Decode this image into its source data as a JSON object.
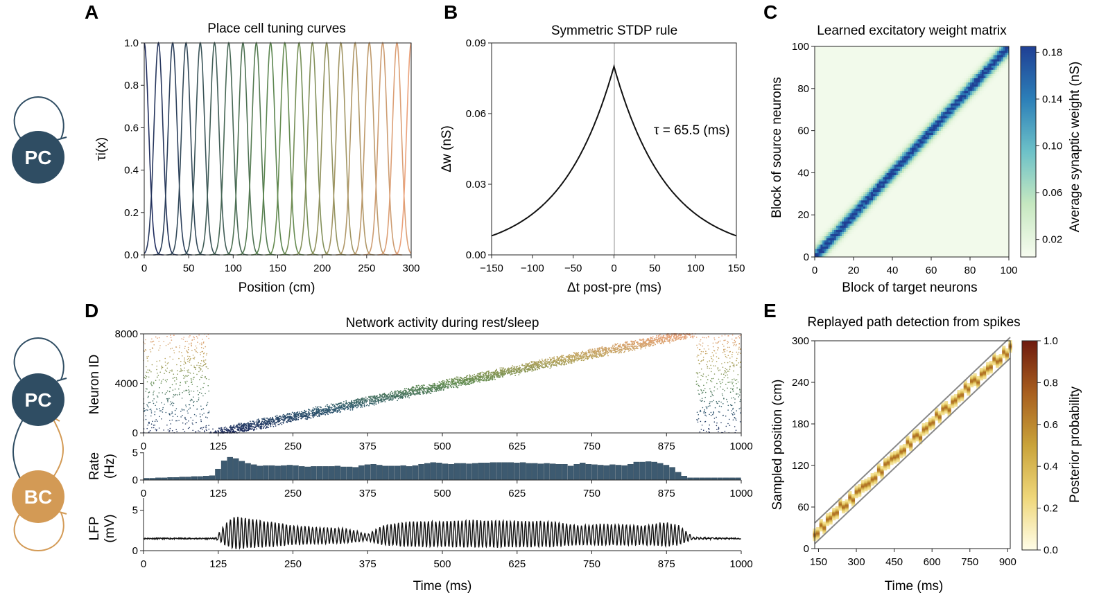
{
  "schematic": {
    "top_label": "PC",
    "bottom_pc_label": "PC",
    "bottom_bc_label": "BC",
    "pc_color": "#2f4d63",
    "bc_color": "#d39a55"
  },
  "chart_data": [
    {
      "panel": "A",
      "type": "line",
      "title": "Place cell tuning curves",
      "xlabel": "Position (cm)",
      "ylabel": "τi(x)",
      "xlim": [
        0,
        300
      ],
      "ylim": [
        0,
        1
      ],
      "xticks": [
        "0",
        "50",
        "100",
        "150",
        "200",
        "250",
        "300"
      ],
      "yticks": [
        "0.0",
        "0.2",
        "0.4",
        "0.6",
        "0.8",
        "1.0"
      ],
      "curve_centers": [
        0,
        16,
        32,
        47,
        63,
        79,
        95,
        111,
        126,
        142,
        158,
        174,
        189,
        205,
        221,
        237,
        253,
        268,
        284,
        300
      ],
      "curve_sigma_cm": 5,
      "color_start": "#1e2b5e",
      "color_mid": "#5e8a4e",
      "color_end": "#eba17a"
    },
    {
      "panel": "B",
      "type": "line",
      "title": "Symmetric STDP rule",
      "xlabel": "Δt post-pre (ms)",
      "ylabel": "Δw (nS)",
      "xlim": [
        -150,
        150
      ],
      "ylim": [
        0,
        0.09
      ],
      "xticks": [
        "−150",
        "−100",
        "−50",
        "0",
        "50",
        "100",
        "150"
      ],
      "yticks": [
        "0.00",
        "0.03",
        "0.06",
        "0.09"
      ],
      "peak": 0.08,
      "tau_ms": 65.5,
      "annotation": "τ = 65.5 (ms)"
    },
    {
      "panel": "C",
      "type": "heatmap",
      "title": "Learned excitatory weight matrix",
      "xlabel": "Block of target neurons",
      "ylabel": "Block of source neurons",
      "colorbar_label": "Average synaptic weight (nS)",
      "xlim": [
        0,
        100
      ],
      "ylim": [
        0,
        100
      ],
      "xticks": [
        "0",
        "20",
        "40",
        "60",
        "80",
        "100"
      ],
      "yticks": [
        "0",
        "20",
        "40",
        "60",
        "80",
        "100"
      ],
      "colorbar_ticks": [
        "0.02",
        "0.06",
        "0.10",
        "0.14",
        "0.18"
      ],
      "colorbar_range": [
        0.005,
        0.185
      ],
      "diagonal_peak": 0.17,
      "background": 0.01
    },
    {
      "panel": "D",
      "type": "scatter",
      "title": "Network activity during rest/sleep",
      "raster": {
        "ylabel": "Neuron ID",
        "xlim": [
          0,
          1000
        ],
        "ylim": [
          0,
          8000
        ],
        "yticks": [
          "0",
          "4000",
          "8000"
        ],
        "xticks": [
          "0",
          "125",
          "250",
          "375",
          "500",
          "625",
          "750",
          "875",
          "1000"
        ],
        "replay_start": [
          125,
          0
        ],
        "replay_end": [
          910,
          8000
        ]
      },
      "rate": {
        "ylabel": "Rate (Hz)",
        "ylim": [
          0,
          6
        ],
        "yticks": [
          "0",
          "5"
        ],
        "xticks": [
          "0",
          "125",
          "250",
          "375",
          "500",
          "625",
          "750",
          "875",
          "1000"
        ],
        "bin_ms": 10,
        "values": [
          0.4,
          0.4,
          0.5,
          0.5,
          0.6,
          0.6,
          0.7,
          0.7,
          0.8,
          0.8,
          0.9,
          1.0,
          2.5,
          4.4,
          5.2,
          4.9,
          4.3,
          3.8,
          3.5,
          3.2,
          3.3,
          3.3,
          3.2,
          3.3,
          3.4,
          3.3,
          3.1,
          3.0,
          3.1,
          3.1,
          3.1,
          3.1,
          3.2,
          3.0,
          3.0,
          2.9,
          3.3,
          3.5,
          3.6,
          3.4,
          3.2,
          3.2,
          3.2,
          3.3,
          3.1,
          3.3,
          3.6,
          3.8,
          4.0,
          3.9,
          3.7,
          3.6,
          3.8,
          3.8,
          3.7,
          3.8,
          3.9,
          3.9,
          4.0,
          4.0,
          4.0,
          4.0,
          3.9,
          4.0,
          3.8,
          3.8,
          3.7,
          3.8,
          3.7,
          3.6,
          3.6,
          3.2,
          3.6,
          3.9,
          3.6,
          3.5,
          3.4,
          3.3,
          3.5,
          3.4,
          3.3,
          3.6,
          4.1,
          4.1,
          4.2,
          4.1,
          3.8,
          3.4,
          2.9,
          1.8,
          0.9,
          0.5,
          0.5,
          0.5,
          0.5,
          0.5,
          0.5,
          0.5,
          0.5,
          0.5
        ]
      },
      "lfp": {
        "ylabel": "LFP (mV)",
        "xlabel": "Time (ms)",
        "ylim": [
          0,
          6
        ],
        "yticks": [
          "0",
          "5"
        ],
        "xticks": [
          "0",
          "125",
          "250",
          "375",
          "500",
          "625",
          "750",
          "875",
          "1000"
        ],
        "baseline": 1.5,
        "envelope_ms": [
          0,
          120,
          135,
          150,
          180,
          250,
          300,
          340,
          375,
          400,
          450,
          500,
          560,
          625,
          680,
          730,
          760,
          800,
          840,
          870,
          895,
          920,
          1000
        ],
        "envelope_amp": [
          0,
          0,
          1.2,
          2.0,
          1.8,
          1.2,
          1.0,
          0.9,
          0.4,
          1.2,
          1.6,
          1.6,
          1.7,
          1.6,
          1.6,
          1.2,
          1.3,
          1.3,
          1.2,
          1.5,
          1.2,
          0.1,
          0
        ],
        "oscillation_hz": 160
      }
    },
    {
      "panel": "E",
      "type": "heatmap",
      "title": "Replayed path detection from spikes",
      "xlabel": "Time (ms)",
      "ylabel": "Sampled position (cm)",
      "colorbar_label": "Posterior probability",
      "xlim": [
        135,
        910
      ],
      "ylim": [
        0,
        300
      ],
      "xticks": [
        "150",
        "300",
        "450",
        "600",
        "750",
        "900"
      ],
      "yticks": [
        "0",
        "60",
        "120",
        "180",
        "240",
        "300"
      ],
      "colorbar_ticks": [
        "0.0",
        "0.2",
        "0.4",
        "0.6",
        "0.8",
        "1.0"
      ],
      "path_start": [
        135,
        22
      ],
      "path_end": [
        910,
        290
      ],
      "band_halfwidth_cm": 15
    }
  ]
}
